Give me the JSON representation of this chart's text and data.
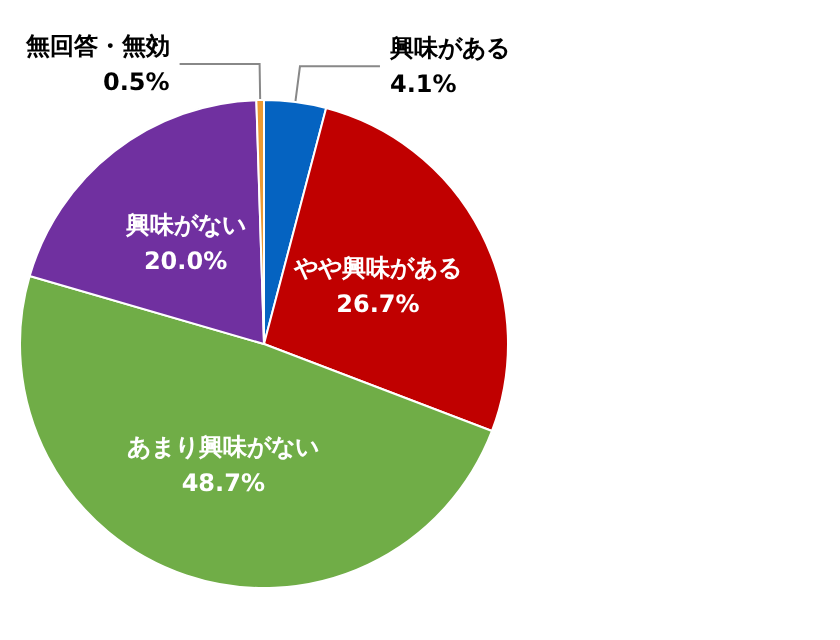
{
  "chart_data": {
    "type": "pie",
    "categories": [
      "興味がある",
      "やや興味がある",
      "あまり興味がない",
      "興味がない",
      "無回答・無効"
    ],
    "values": [
      4.1,
      26.7,
      48.7,
      20.0,
      0.5
    ],
    "colors": [
      "#0563c1",
      "#c00000",
      "#70ad47",
      "#7030a0",
      "#ed9b33"
    ],
    "value_labels": [
      "4.1%",
      "26.7%",
      "48.7%",
      "20.0%",
      "0.5%"
    ],
    "legend": false
  }
}
